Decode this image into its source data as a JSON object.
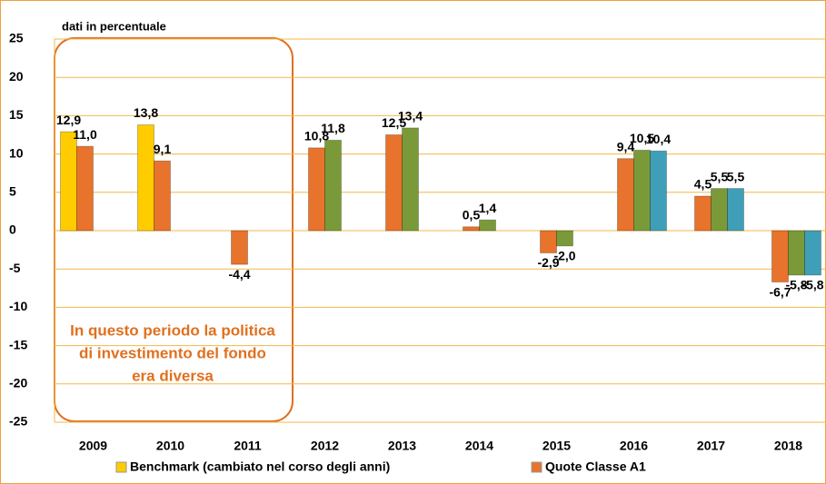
{
  "chart_data": {
    "type": "bar",
    "subtitle": "dati in percentuale",
    "annotation": [
      "In questo periodo la politica",
      "di investimento del fondo",
      "era diversa"
    ],
    "categories": [
      "2009",
      "2010",
      "2011",
      "2012",
      "2013",
      "2014",
      "2015",
      "2016",
      "2017",
      "2018"
    ],
    "series": [
      {
        "name": "Benchmark (cambiato nel corso degli anni)",
        "color": "#ffcc00",
        "values": [
          12.9,
          13.8,
          null,
          null,
          null,
          null,
          null,
          null,
          null,
          null
        ],
        "value_labels": [
          "12,9",
          "13,8",
          null,
          null,
          null,
          null,
          null,
          null,
          null,
          null
        ]
      },
      {
        "name": "Quote Classe A1",
        "color": "#e8732c",
        "values": [
          11.0,
          9.1,
          -4.4,
          10.8,
          12.5,
          0.5,
          -2.9,
          9.4,
          4.5,
          -6.7
        ],
        "value_labels": [
          "11,0",
          "9,1",
          "-4,4",
          "10,8",
          "12,5",
          "0,5",
          "-2,9",
          "9,4",
          "4,5",
          "-6,7"
        ]
      },
      {
        "color": "#7a9a3a",
        "values": [
          null,
          null,
          null,
          11.8,
          13.4,
          1.4,
          -2.0,
          10.5,
          5.5,
          -5.8
        ],
        "value_labels": [
          null,
          null,
          null,
          "11,8",
          "13,4",
          "1,4",
          "-2,0",
          "10,5",
          "5,5",
          "-5,8"
        ]
      },
      {
        "color": "#3f9fb8",
        "values": [
          null,
          null,
          null,
          null,
          null,
          null,
          null,
          10.4,
          5.5,
          -5.8
        ],
        "value_labels": [
          null,
          null,
          null,
          null,
          null,
          null,
          null,
          "10,4",
          "5,5",
          "-5,8"
        ]
      }
    ],
    "ylim": [
      -25,
      25
    ],
    "yticks": [
      -25,
      -20,
      -15,
      -10,
      -5,
      0,
      5,
      10,
      15,
      20,
      25
    ],
    "grid": true
  }
}
